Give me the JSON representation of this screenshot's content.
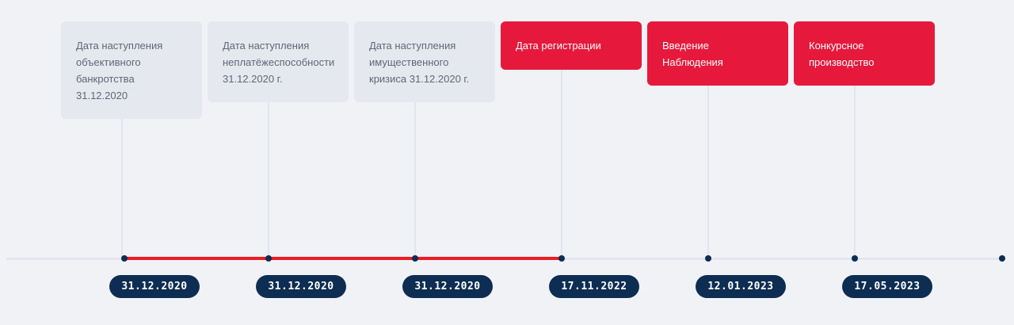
{
  "events": [
    {
      "label": "Дата наступления\nобъективного\nбанкротства\n31.12.2020",
      "date": "31.12.2020",
      "style": "gray"
    },
    {
      "label": "Дата наступления\nнеплатёжеспособности\n31.12.2020 г.",
      "date": "31.12.2020",
      "style": "gray"
    },
    {
      "label": "Дата наступления\nимущественного\nкризиса 31.12.2020 г.",
      "date": "31.12.2020",
      "style": "gray"
    },
    {
      "label": "Дата регистрации",
      "date": "17.11.2022",
      "style": "red"
    },
    {
      "label": "Введение\nНаблюдения",
      "date": "12.01.2023",
      "style": "red"
    },
    {
      "label": "Конкурсное\nпроизводство",
      "date": "17.05.2023",
      "style": "red"
    }
  ],
  "colors": {
    "background": "#f1f2f6",
    "card_gray": "#e6e8f0",
    "card_red": "#e6193c",
    "progress": "#ec1b23",
    "marker": "#0d2d52"
  }
}
